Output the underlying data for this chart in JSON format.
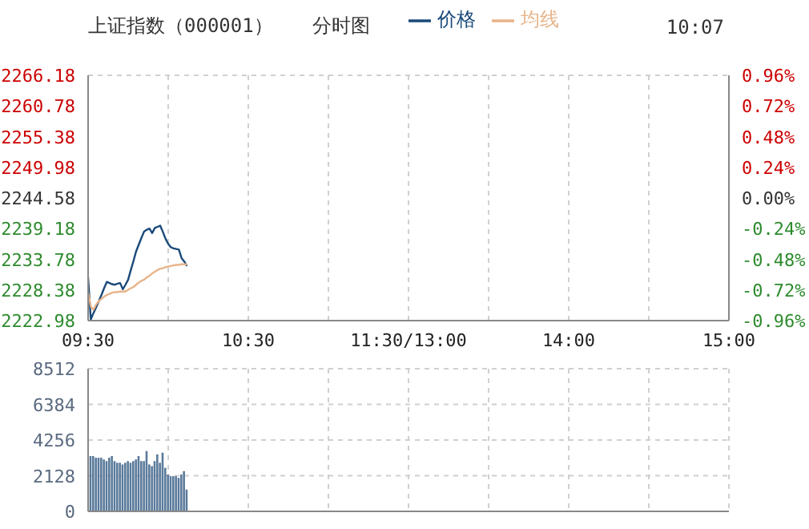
{
  "chart_data": [
    {
      "type": "line",
      "title": "上证指数（000001）",
      "subtitle": "分时图",
      "annotations": [
        "10:07"
      ],
      "legend": "top",
      "grid": true,
      "marker": "none",
      "categories": [
        "09:30",
        null,
        null,
        null,
        null,
        null,
        null,
        null,
        null,
        null,
        null,
        null,
        null,
        null,
        null,
        null,
        null,
        null,
        null,
        null,
        null,
        null,
        null,
        null,
        null,
        null,
        null,
        null,
        null,
        null,
        null,
        null,
        null,
        null,
        null,
        null,
        null,
        null,
        null,
        null,
        null,
        null,
        null,
        null,
        null,
        null,
        null,
        null,
        null,
        null,
        null,
        null,
        null,
        null,
        null,
        null,
        null,
        null,
        null,
        null,
        "10:30",
        null,
        null,
        null,
        null,
        null,
        null,
        null,
        null,
        null,
        null,
        null,
        null,
        null,
        null,
        null,
        null,
        null,
        null,
        null,
        null,
        null,
        null,
        null,
        null,
        null,
        null,
        null,
        null,
        null,
        null,
        null,
        null,
        null,
        null,
        null,
        null,
        null,
        null,
        null,
        null,
        null,
        null,
        null,
        null,
        null,
        null,
        null,
        null,
        null,
        null,
        null,
        null,
        null,
        null,
        null,
        null,
        null,
        null,
        null,
        "11:30/13:00",
        null,
        null,
        null,
        null,
        null,
        null,
        null,
        null,
        null,
        null,
        null,
        null,
        null,
        null,
        null,
        null,
        null,
        null,
        null,
        null,
        null,
        null,
        null,
        null,
        null,
        null,
        null,
        null,
        null,
        null,
        null,
        null,
        null,
        null,
        null,
        null,
        null,
        null,
        null,
        null,
        null,
        null,
        null,
        null,
        null,
        null,
        null,
        null,
        null,
        null,
        null,
        null,
        null,
        null,
        null,
        null,
        null,
        null,
        null,
        "14:00",
        null,
        null,
        null,
        null,
        null,
        null,
        null,
        null,
        null,
        null,
        null,
        null,
        null,
        null,
        null,
        null,
        null,
        null,
        null,
        null,
        null,
        null,
        null,
        null,
        null,
        null,
        null,
        null,
        null,
        null,
        null,
        null,
        null,
        null,
        null,
        null,
        null,
        null,
        null,
        null,
        null,
        null,
        null,
        null,
        null,
        null,
        null,
        null,
        null,
        null,
        null,
        null,
        null,
        null,
        null,
        null,
        null,
        null,
        null,
        "15:00"
      ],
      "ylim": [
        2222.98,
        2266.18
      ],
      "yticks": [
        2222.98,
        2228.38,
        2233.78,
        2239.18,
        2244.58,
        2249.98,
        2255.38,
        2260.78,
        2266.18
      ],
      "y2lim": [
        -0.96,
        0.96
      ],
      "y2ticks": [
        {
          "value": -0.96,
          "label": "-0.96%"
        },
        {
          "value": -0.72,
          "label": "-0.72%"
        },
        {
          "value": -0.48,
          "label": "-0.48%"
        },
        {
          "value": -0.24,
          "label": "-0.24%"
        },
        {
          "value": 0,
          "label": "0.00%"
        },
        {
          "value": 0.24,
          "label": "0.24%"
        },
        {
          "value": 0.48,
          "label": "0.48%"
        },
        {
          "value": 0.72,
          "label": "0.72%"
        },
        {
          "value": 0.96,
          "label": "0.96%"
        }
      ],
      "series": [
        {
          "name": "价格",
          "color": "#1a4a7a",
          "values": [
            2230.6,
            2223.2,
            2224.3,
            2225.3,
            2226.4,
            2227.5,
            2228.7,
            2229.8,
            2229.6,
            2229.4,
            2229.3,
            2229.5,
            2229.6,
            2228.5,
            2229.3,
            2230.2,
            2231.9,
            2233.5,
            2235.2,
            2236.4,
            2237.6,
            2238.7,
            2239.0,
            2239.2,
            2238.4,
            2239.3,
            2239.5,
            2239.7,
            2238.6,
            2237.4,
            2236.5,
            2235.9,
            2235.7,
            2235.6,
            2235.5,
            2234.0,
            2233.4,
            2232.6,
            null,
            null,
            null,
            null,
            null,
            null,
            null,
            null,
            null,
            null,
            null,
            null,
            null,
            null,
            null,
            null,
            null,
            null,
            null,
            null,
            null,
            null,
            null,
            null,
            null,
            null,
            null,
            null,
            null,
            null,
            null,
            null,
            null,
            null,
            null,
            null,
            null,
            null,
            null,
            null,
            null,
            null,
            null,
            null,
            null,
            null,
            null,
            null,
            null,
            null,
            null,
            null,
            null,
            null,
            null,
            null,
            null,
            null,
            null,
            null,
            null,
            null,
            null,
            null,
            null,
            null,
            null,
            null,
            null,
            null,
            null,
            null,
            null,
            null,
            null,
            null,
            null,
            null,
            null,
            null,
            null,
            null,
            null,
            null,
            null,
            null,
            null,
            null,
            null,
            null,
            null,
            null,
            null,
            null,
            null,
            null,
            null,
            null,
            null,
            null,
            null,
            null,
            null,
            null,
            null,
            null,
            null,
            null,
            null,
            null,
            null,
            null,
            null,
            null,
            null,
            null,
            null,
            null,
            null,
            null,
            null,
            null,
            null,
            null,
            null,
            null,
            null,
            null,
            null,
            null,
            null,
            null,
            null,
            null,
            null,
            null,
            null,
            null,
            null,
            null,
            null,
            null,
            null,
            null,
            null,
            null,
            null,
            null,
            null,
            null,
            null,
            null,
            null,
            null,
            null,
            null,
            null,
            null,
            null,
            null,
            null,
            null,
            null,
            null,
            null,
            null,
            null,
            null,
            null,
            null,
            null,
            null,
            null,
            null,
            null,
            null,
            null,
            null,
            null,
            null,
            null,
            null,
            null,
            null,
            null,
            null,
            null,
            null,
            null,
            null,
            null,
            null,
            null,
            null,
            null,
            null,
            null,
            null,
            null,
            null,
            null,
            null,
            null
          ]
        },
        {
          "name": "均线",
          "color": "#e8b48a",
          "values": [
            2228.0,
            2225.5,
            2224.9,
            2225.8,
            2226.4,
            2226.8,
            2227.2,
            2227.5,
            2227.7,
            2227.9,
            2228.0,
            2228.0,
            2228.1,
            2228.1,
            2228.1,
            2228.4,
            2228.7,
            2228.9,
            2229.3,
            2229.7,
            2230.0,
            2230.2,
            2230.6,
            2230.9,
            2231.3,
            2231.6,
            2231.9,
            2232.1,
            2232.2,
            2232.4,
            2232.5,
            2232.6,
            2232.7,
            2232.8,
            2232.8,
            2232.9,
            2232.9,
            2232.9,
            null,
            null,
            null,
            null,
            null,
            null,
            null,
            null,
            null,
            null,
            null,
            null,
            null,
            null,
            null,
            null,
            null,
            null,
            null,
            null,
            null,
            null,
            null,
            null,
            null,
            null,
            null,
            null,
            null,
            null,
            null,
            null,
            null,
            null,
            null,
            null,
            null,
            null,
            null,
            null,
            null,
            null,
            null,
            null,
            null,
            null,
            null,
            null,
            null,
            null,
            null,
            null,
            null,
            null,
            null,
            null,
            null,
            null,
            null,
            null,
            null,
            null,
            null,
            null,
            null,
            null,
            null,
            null,
            null,
            null,
            null,
            null,
            null,
            null,
            null,
            null,
            null,
            null,
            null,
            null,
            null,
            null,
            null,
            null,
            null,
            null,
            null,
            null,
            null,
            null,
            null,
            null,
            null,
            null,
            null,
            null,
            null,
            null,
            null,
            null,
            null,
            null,
            null,
            null,
            null,
            null,
            null,
            null,
            null,
            null,
            null,
            null,
            null,
            null,
            null,
            null,
            null,
            null,
            null,
            null,
            null,
            null,
            null,
            null,
            null,
            null,
            null,
            null,
            null,
            null,
            null,
            null,
            null,
            null,
            null,
            null,
            null,
            null,
            null,
            null,
            null,
            null,
            null,
            null,
            null,
            null,
            null,
            null,
            null,
            null,
            null,
            null,
            null,
            null,
            null,
            null,
            null,
            null,
            null,
            null,
            null,
            null,
            null,
            null,
            null,
            null,
            null,
            null,
            null,
            null,
            null,
            null,
            null,
            null,
            null,
            null,
            null,
            null,
            null,
            null,
            null,
            null,
            null,
            null,
            null,
            null,
            null,
            null,
            null,
            null,
            null,
            null,
            null,
            null,
            null,
            null,
            null,
            null,
            null,
            null,
            null,
            null,
            null
          ]
        }
      ]
    },
    {
      "type": "bar",
      "tick_labels": "y",
      "grid": true,
      "color": "#5a7a9a",
      "categories": [
        null,
        null,
        null,
        null,
        null,
        null,
        null,
        null,
        null,
        null,
        null,
        null,
        null,
        null,
        null,
        null,
        null,
        null,
        null,
        null,
        null,
        null,
        null,
        null,
        null,
        null,
        null,
        null,
        null,
        null,
        null,
        null,
        null,
        null,
        null,
        null,
        null,
        null,
        null,
        null,
        null,
        null,
        null,
        null,
        null,
        null,
        null,
        null,
        null,
        null,
        null,
        null,
        null,
        null,
        null,
        null,
        null,
        null,
        null,
        null,
        null,
        null,
        null,
        null,
        null,
        null,
        null,
        null,
        null,
        null,
        null,
        null,
        null,
        null,
        null,
        null,
        null,
        null,
        null,
        null,
        null,
        null,
        null,
        null,
        null,
        null,
        null,
        null,
        null,
        null,
        null,
        null,
        null,
        null,
        null,
        null,
        null,
        null,
        null,
        null,
        null,
        null,
        null,
        null,
        null,
        null,
        null,
        null,
        null,
        null,
        null,
        null,
        null,
        null,
        null,
        null,
        null,
        null,
        null,
        null,
        null,
        null,
        null,
        null,
        null,
        null,
        null,
        null,
        null,
        null,
        null,
        null,
        null,
        null,
        null,
        null,
        null,
        null,
        null,
        null,
        null,
        null,
        null,
        null,
        null,
        null,
        null,
        null,
        null,
        null,
        null,
        null,
        null,
        null,
        null,
        null,
        null,
        null,
        null,
        null,
        null,
        null,
        null,
        null,
        null,
        null,
        null,
        null,
        null,
        null,
        null,
        null,
        null,
        null,
        null,
        null,
        null,
        null,
        null,
        null,
        null,
        null,
        null,
        null,
        null,
        null,
        null,
        null,
        null,
        null,
        null,
        null,
        null,
        null,
        null,
        null,
        null,
        null,
        null,
        null,
        null,
        null,
        null,
        null,
        null,
        null,
        null,
        null,
        null,
        null,
        null,
        null,
        null,
        null,
        null,
        null,
        null,
        null,
        null,
        null,
        null,
        null,
        null,
        null,
        null,
        null,
        null,
        null,
        null,
        null,
        null,
        null,
        null,
        null,
        null,
        null,
        null,
        null,
        null,
        null,
        null
      ],
      "values": [
        null,
        3300,
        3300,
        3200,
        3200,
        3200,
        3100,
        3000,
        3200,
        3300,
        3000,
        2900,
        2900,
        2800,
        2900,
        3000,
        2900,
        3000,
        3100,
        3300,
        3000,
        3000,
        3600,
        2800,
        2700,
        3000,
        3400,
        2900,
        3500,
        2600,
        2200,
        2100,
        2100,
        2100,
        2000,
        2200,
        2400,
        1300,
        null,
        null,
        null,
        null,
        null,
        null,
        null,
        null,
        null,
        null,
        null,
        null,
        null,
        null,
        null,
        null,
        null,
        null,
        null,
        null,
        null,
        null,
        null,
        null,
        null,
        null,
        null,
        null,
        null,
        null,
        null,
        null,
        null,
        null,
        null,
        null,
        null,
        null,
        null,
        null,
        null,
        null,
        null,
        null,
        null,
        null,
        null,
        null,
        null,
        null,
        null,
        null,
        null,
        null,
        null,
        null,
        null,
        null,
        null,
        null,
        null,
        null,
        null,
        null,
        null,
        null,
        null,
        null,
        null,
        null,
        null,
        null,
        null,
        null,
        null,
        null,
        null,
        null,
        null,
        null,
        null,
        null,
        null,
        null,
        null,
        null,
        null,
        null,
        null,
        null,
        null,
        null,
        null,
        null,
        null,
        null,
        null,
        null,
        null,
        null,
        null,
        null,
        null,
        null,
        null,
        null,
        null,
        null,
        null,
        null,
        null,
        null,
        null,
        null,
        null,
        null,
        null,
        null,
        null,
        null,
        null,
        null,
        null,
        null,
        null,
        null,
        null,
        null,
        null,
        null,
        null,
        null,
        null,
        null,
        null,
        null,
        null,
        null,
        null,
        null,
        null,
        null,
        null,
        null,
        null,
        null,
        null,
        null,
        null,
        null,
        null,
        null,
        null,
        null,
        null,
        null,
        null,
        null,
        null,
        null,
        null,
        null,
        null,
        null,
        null,
        null,
        null,
        null,
        null,
        null,
        null,
        null,
        null,
        null,
        null,
        null,
        null,
        null,
        null,
        null,
        null,
        null,
        null,
        null,
        null,
        null,
        null,
        null,
        null,
        null,
        null,
        null,
        null,
        null,
        null,
        null,
        null,
        null,
        null,
        null,
        null,
        null,
        null
      ],
      "ylim": [
        0,
        8512
      ],
      "yticks": [
        0,
        2128,
        4256,
        6384,
        8512
      ]
    }
  ]
}
